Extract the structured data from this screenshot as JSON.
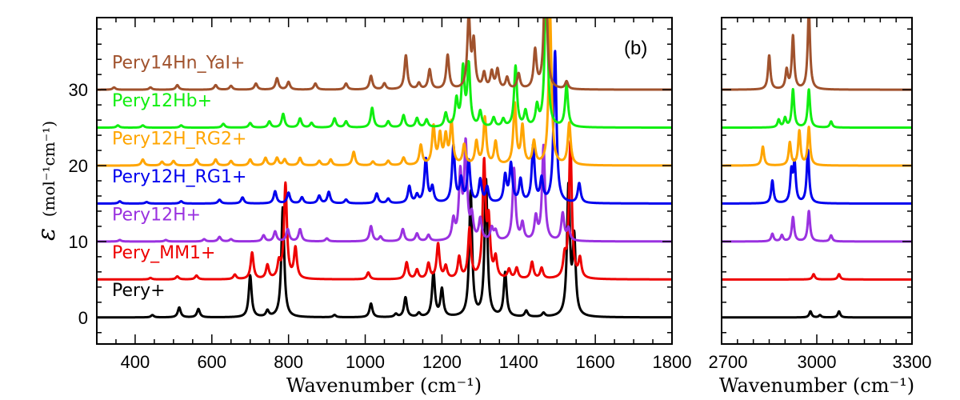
{
  "chart_data": {
    "type": "line",
    "panel_label": "(b)",
    "ylabel_symbol": "ε",
    "ylabel_units": "(mol⁻¹cm⁻¹)",
    "xlabel_left": "Wavenumber (cm⁻¹)",
    "xlabel_right": "Wavenumber (cm⁻¹)",
    "y_ticks": [
      0,
      10,
      20,
      30
    ],
    "ylim": [
      -3.5,
      39.5
    ],
    "panels": [
      {
        "id": "left",
        "xlim": [
          300,
          1800
        ],
        "x_ticks": [
          400,
          600,
          800,
          1000,
          1200,
          1400,
          1600,
          1800
        ],
        "x_minor_step": 50
      },
      {
        "id": "right",
        "xlim": [
          2700,
          3300
        ],
        "x_ticks": [
          2700,
          3000,
          3300
        ],
        "x_minor_step": 50
      }
    ],
    "series": [
      {
        "name": "Pery+",
        "color": "#000000",
        "offset": 0,
        "width": 6,
        "peaks": [
          [
            445,
            0.3
          ],
          [
            515,
            1.3
          ],
          [
            565,
            1.1
          ],
          [
            700,
            5.5
          ],
          [
            745,
            0.8
          ],
          [
            785,
            14.5
          ],
          [
            920,
            0.3
          ],
          [
            1015,
            1.8
          ],
          [
            1080,
            0.4
          ],
          [
            1105,
            2.6
          ],
          [
            1140,
            0.5
          ],
          [
            1178,
            5.8
          ],
          [
            1200,
            3.6
          ],
          [
            1275,
            16.5
          ],
          [
            1315,
            18
          ],
          [
            1365,
            5.8
          ],
          [
            1420,
            0.8
          ],
          [
            1465,
            0.5
          ],
          [
            1530,
            17
          ],
          [
            1545,
            10
          ],
          [
            2980,
            0.8
          ],
          [
            3010,
            0.3
          ],
          [
            3070,
            0.8
          ]
        ]
      },
      {
        "name": "Pery_MM1+",
        "color": "#ee0000",
        "offset": 5,
        "width": 6,
        "peaks": [
          [
            440,
            0.2
          ],
          [
            510,
            0.4
          ],
          [
            560,
            0.5
          ],
          [
            660,
            0.6
          ],
          [
            705,
            3.5
          ],
          [
            745,
            1.8
          ],
          [
            775,
            2.0
          ],
          [
            792,
            12.5
          ],
          [
            818,
            4.0
          ],
          [
            1008,
            0.9
          ],
          [
            1108,
            2.2
          ],
          [
            1135,
            1.2
          ],
          [
            1165,
            2.0
          ],
          [
            1190,
            4.6
          ],
          [
            1210,
            1.6
          ],
          [
            1245,
            2.8
          ],
          [
            1272,
            6.5
          ],
          [
            1310,
            15
          ],
          [
            1322,
            7
          ],
          [
            1340,
            2.6
          ],
          [
            1375,
            1.2
          ],
          [
            1395,
            1.4
          ],
          [
            1435,
            2.2
          ],
          [
            1460,
            1.4
          ],
          [
            1520,
            2.5
          ],
          [
            1535,
            18
          ],
          [
            1560,
            2.5
          ],
          [
            2990,
            0.7
          ],
          [
            3070,
            0.7
          ]
        ]
      },
      {
        "name": "Pery12H+",
        "color": "#9a32e0",
        "offset": 10,
        "width": 6,
        "peaks": [
          [
            360,
            0.2
          ],
          [
            480,
            0.2
          ],
          [
            580,
            0.3
          ],
          [
            620,
            0.6
          ],
          [
            650,
            0.3
          ],
          [
            735,
            0.8
          ],
          [
            765,
            1.3
          ],
          [
            798,
            1.6
          ],
          [
            830,
            1.6
          ],
          [
            900,
            0.4
          ],
          [
            1015,
            2.0
          ],
          [
            1040,
            0.6
          ],
          [
            1098,
            1.6
          ],
          [
            1135,
            1.0
          ],
          [
            1165,
            0.8
          ],
          [
            1230,
            2.6
          ],
          [
            1248,
            8.5
          ],
          [
            1262,
            12.5
          ],
          [
            1278,
            3.0
          ],
          [
            1300,
            2.8
          ],
          [
            1330,
            1.6
          ],
          [
            1340,
            1.2
          ],
          [
            1388,
            9.5
          ],
          [
            1410,
            2.2
          ],
          [
            1445,
            3.0
          ],
          [
            1465,
            12.5
          ],
          [
            1515,
            3.6
          ],
          [
            1530,
            1.6
          ],
          [
            2860,
            1.0
          ],
          [
            2890,
            0.8
          ],
          [
            2925,
            3.2
          ],
          [
            2975,
            4.0
          ],
          [
            3045,
            0.8
          ]
        ]
      },
      {
        "name": "Pery12H_RG1+",
        "color": "#0000ee",
        "offset": 15,
        "width": 6,
        "peaks": [
          [
            360,
            0.3
          ],
          [
            430,
            0.2
          ],
          [
            520,
            0.3
          ],
          [
            620,
            0.5
          ],
          [
            680,
            0.8
          ],
          [
            765,
            1.6
          ],
          [
            800,
            1.4
          ],
          [
            835,
            0.8
          ],
          [
            880,
            1.0
          ],
          [
            905,
            1.5
          ],
          [
            950,
            0.5
          ],
          [
            1030,
            1.3
          ],
          [
            1060,
            0.6
          ],
          [
            1115,
            2.2
          ],
          [
            1135,
            1.0
          ],
          [
            1158,
            5.8
          ],
          [
            1175,
            2.0
          ],
          [
            1230,
            7.5
          ],
          [
            1250,
            3.0
          ],
          [
            1270,
            5.5
          ],
          [
            1300,
            3.0
          ],
          [
            1318,
            2.0
          ],
          [
            1365,
            3.5
          ],
          [
            1380,
            5.0
          ],
          [
            1405,
            3.0
          ],
          [
            1438,
            7.5
          ],
          [
            1460,
            3.0
          ],
          [
            1495,
            20
          ],
          [
            1558,
            2.6
          ],
          [
            2860,
            3.0
          ],
          [
            2920,
            4.0
          ],
          [
            2930,
            5.0
          ],
          [
            2972,
            7.0
          ]
        ]
      },
      {
        "name": "Pery12H_RG2+",
        "color": "#ffa500",
        "offset": 20,
        "width": 6,
        "peaks": [
          [
            420,
            0.8
          ],
          [
            470,
            0.5
          ],
          [
            500,
            0.6
          ],
          [
            560,
            0.8
          ],
          [
            610,
            0.8
          ],
          [
            650,
            0.6
          ],
          [
            700,
            0.8
          ],
          [
            740,
            1.0
          ],
          [
            770,
            1.0
          ],
          [
            790,
            0.8
          ],
          [
            830,
            1.0
          ],
          [
            880,
            0.6
          ],
          [
            910,
            0.8
          ],
          [
            970,
            1.8
          ],
          [
            1020,
            0.5
          ],
          [
            1060,
            0.6
          ],
          [
            1100,
            1.0
          ],
          [
            1145,
            2.6
          ],
          [
            1178,
            5.0
          ],
          [
            1195,
            3.8
          ],
          [
            1210,
            3.6
          ],
          [
            1225,
            5.5
          ],
          [
            1258,
            2.6
          ],
          [
            1290,
            3.0
          ],
          [
            1312,
            6.2
          ],
          [
            1340,
            3.0
          ],
          [
            1390,
            8.0
          ],
          [
            1410,
            5.0
          ],
          [
            1440,
            3.0
          ],
          [
            1482,
            20
          ],
          [
            1532,
            5.5
          ],
          [
            2830,
            2.5
          ],
          [
            2915,
            3.0
          ],
          [
            2945,
            4.5
          ],
          [
            2975,
            5.0
          ]
        ]
      },
      {
        "name": "Pery12Hb+",
        "color": "#11ee11",
        "offset": 25,
        "width": 6,
        "peaks": [
          [
            355,
            0.3
          ],
          [
            420,
            0.3
          ],
          [
            520,
            0.3
          ],
          [
            630,
            0.5
          ],
          [
            700,
            0.6
          ],
          [
            750,
            0.8
          ],
          [
            786,
            1.8
          ],
          [
            830,
            1.2
          ],
          [
            860,
            0.6
          ],
          [
            920,
            1.2
          ],
          [
            950,
            0.8
          ],
          [
            1018,
            2.6
          ],
          [
            1060,
            0.8
          ],
          [
            1100,
            1.6
          ],
          [
            1135,
            1.2
          ],
          [
            1160,
            1.0
          ],
          [
            1210,
            1.8
          ],
          [
            1238,
            3.5
          ],
          [
            1255,
            7.5
          ],
          [
            1270,
            8.0
          ],
          [
            1300,
            2.0
          ],
          [
            1335,
            1.2
          ],
          [
            1360,
            1.0
          ],
          [
            1392,
            8.0
          ],
          [
            1418,
            2.0
          ],
          [
            1448,
            2.6
          ],
          [
            1472,
            20
          ],
          [
            1525,
            5.5
          ],
          [
            2880,
            1.0
          ],
          [
            2900,
            1.2
          ],
          [
            2925,
            5.0
          ],
          [
            2975,
            5.0
          ],
          [
            3045,
            0.8
          ]
        ]
      },
      {
        "name": "Pery14Hn_YaI+",
        "color": "#a0522d",
        "offset": 30,
        "width": 6,
        "peaks": [
          [
            345,
            0.3
          ],
          [
            440,
            0.3
          ],
          [
            510,
            0.6
          ],
          [
            610,
            0.6
          ],
          [
            650,
            0.5
          ],
          [
            715,
            0.8
          ],
          [
            770,
            1.5
          ],
          [
            800,
            1.0
          ],
          [
            870,
            0.8
          ],
          [
            950,
            0.8
          ],
          [
            1015,
            1.8
          ],
          [
            1050,
            0.8
          ],
          [
            1106,
            4.5
          ],
          [
            1140,
            0.8
          ],
          [
            1168,
            2.6
          ],
          [
            1215,
            4.5
          ],
          [
            1270,
            9.5
          ],
          [
            1283,
            6.0
          ],
          [
            1310,
            2.0
          ],
          [
            1330,
            2.2
          ],
          [
            1345,
            2.5
          ],
          [
            1370,
            1.5
          ],
          [
            1400,
            2.0
          ],
          [
            1443,
            5.0
          ],
          [
            1470,
            18
          ],
          [
            1525,
            1.0
          ],
          [
            2850,
            4.5
          ],
          [
            2905,
            2.5
          ],
          [
            2925,
            7.0
          ],
          [
            2975,
            10.5
          ]
        ]
      }
    ]
  }
}
